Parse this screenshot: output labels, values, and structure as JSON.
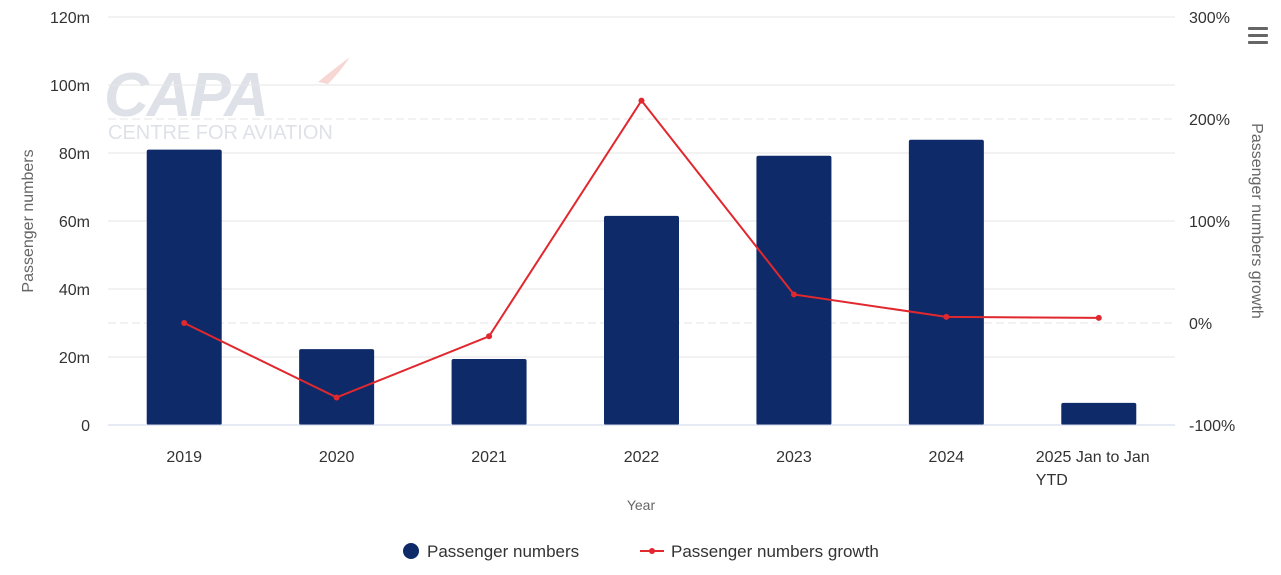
{
  "chart_data": {
    "type": "bar",
    "categories": [
      "2019",
      "2020",
      "2021",
      "2022",
      "2023",
      "2024",
      "2025 Jan to Jan YTD"
    ],
    "category_lines": [
      [
        "2019"
      ],
      [
        "2020"
      ],
      [
        "2021"
      ],
      [
        "2022"
      ],
      [
        "2023"
      ],
      [
        "2024"
      ],
      [
        "2025 Jan to Jan",
        "YTD"
      ]
    ],
    "series": [
      {
        "name": "Passenger numbers",
        "type": "bar",
        "axis": "left",
        "values": [
          81,
          22.3,
          19.4,
          61.5,
          79.2,
          83.9,
          6.5
        ],
        "color": "#0f2a68"
      },
      {
        "name": "Passenger numbers growth",
        "type": "line",
        "axis": "right",
        "values": [
          0,
          -73,
          -13,
          218,
          28,
          6,
          5
        ],
        "color": "#e0282e"
      }
    ],
    "xlabel": "Year",
    "ylabel": "Passenger numbers",
    "ylabel_right": "Passenger numbers growth",
    "ylim": [
      0,
      120
    ],
    "ylim_right": [
      -100,
      300
    ],
    "yticks": [
      {
        "v": 0,
        "label": "0"
      },
      {
        "v": 20,
        "label": "20m"
      },
      {
        "v": 40,
        "label": "40m"
      },
      {
        "v": 60,
        "label": "60m"
      },
      {
        "v": 80,
        "label": "80m"
      },
      {
        "v": 100,
        "label": "100m"
      },
      {
        "v": 120,
        "label": "120m"
      }
    ],
    "yticks_right": [
      {
        "v": -100,
        "label": "-100%"
      },
      {
        "v": 0,
        "label": "0%"
      },
      {
        "v": 100,
        "label": "100%"
      },
      {
        "v": 200,
        "label": "200%"
      },
      {
        "v": 300,
        "label": "300%"
      }
    ],
    "grid": true,
    "legend": "bottom-center"
  },
  "watermark": {
    "logo_text": "CAPA",
    "tagline": "CENTRE FOR AVIATION"
  },
  "menu_icon": "hamburger-menu-icon"
}
